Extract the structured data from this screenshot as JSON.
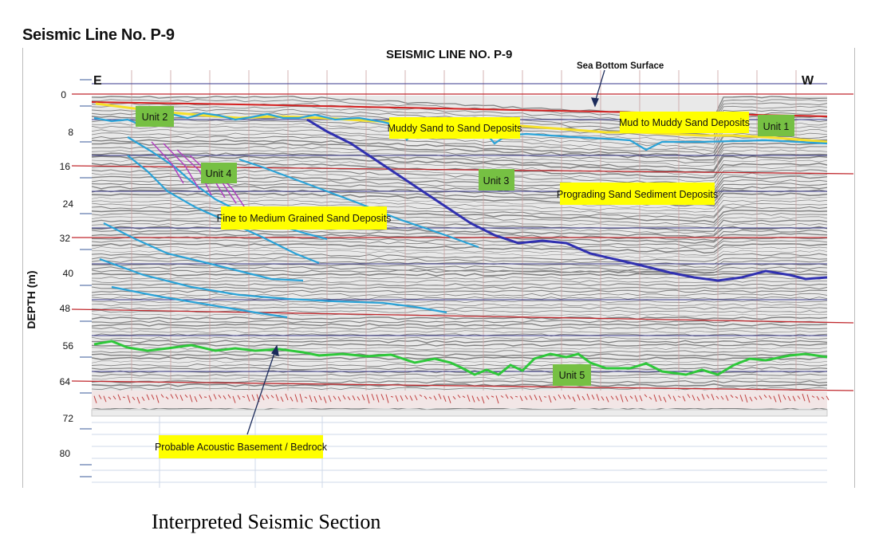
{
  "page_title": "Seismic Line No. P-9",
  "section_title": "SEISMIC LINE NO. P-9",
  "caption": "Interpreted Seismic  Section",
  "axis": {
    "label": "DEPTH (m)",
    "ticks": [
      "0",
      "8",
      "16",
      "24",
      "32",
      "40",
      "48",
      "56",
      "64",
      "72",
      "80"
    ]
  },
  "directions": {
    "left": "E",
    "right": "W"
  },
  "sea_bottom_label": "Sea Bottom Surface",
  "units": {
    "unit1": "Unit 1",
    "unit2": "Unit 2",
    "unit3": "Unit 3",
    "unit4": "Unit 4",
    "unit5": "Unit 5"
  },
  "annotations": {
    "muddy_sand": "Muddy Sand to Sand Deposits",
    "mud_to_muddy": "Mud to Muddy Sand Deposits",
    "prograding": "Prograding Sand Sediment Deposits",
    "fine_medium": "Fine to Medium Grained Sand Deposits",
    "basement": "Probable Acoustic Basement / Bedrock"
  },
  "colors": {
    "label_bg": "#ffff00",
    "unit_bg": "#76c043",
    "red_lines": "#c0282d",
    "sea_bottom": "#d42020",
    "yellow_horizon": "#f5e02a",
    "cyan_horizon": "#2aa3d8",
    "blue_horizon": "#3030b0",
    "green_horizon": "#2ec83a",
    "purple_faults": "#b040c0"
  }
}
